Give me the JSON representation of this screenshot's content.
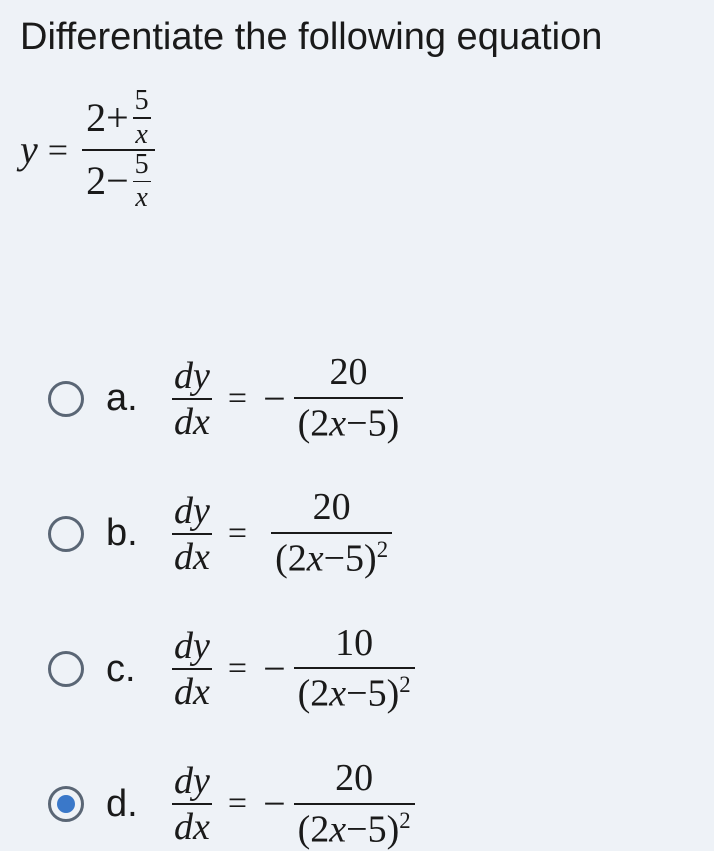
{
  "title": "Differentiate the following equation",
  "equation": {
    "lhs_var": "y",
    "eq_sign": "=",
    "num_const": "2",
    "num_op": "+",
    "den_const": "2",
    "den_op": "−",
    "small_num": "5",
    "small_den": "x"
  },
  "options": {
    "a": {
      "label": "a.",
      "dy": "dy",
      "dx": "dx",
      "eq": "=",
      "neg": "−",
      "num": "20",
      "den_open": "(2",
      "den_x": "x",
      "den_rest": "−5)",
      "den_sup": ""
    },
    "b": {
      "label": "b.",
      "dy": "dy",
      "dx": "dx",
      "eq": "=",
      "neg": "",
      "num": "20",
      "den_open": "(2",
      "den_x": "x",
      "den_rest": "−5)",
      "den_sup": "2"
    },
    "c": {
      "label": "c.",
      "dy": "dy",
      "dx": "dx",
      "eq": "=",
      "neg": "−",
      "num": "10",
      "den_open": "(2",
      "den_x": "x",
      "den_rest": "−5)",
      "den_sup": "2"
    },
    "d": {
      "label": "d.",
      "dy": "dy",
      "dx": "dx",
      "eq": "=",
      "neg": "−",
      "num": "20",
      "den_open": "(2",
      "den_x": "x",
      "den_rest": "−5)",
      "den_sup": "2"
    }
  },
  "selected": "d",
  "colors": {
    "background": "#eef2f7",
    "text": "#1a1a1a",
    "radio_border": "#5a6675",
    "radio_fill": "#3a78c9"
  }
}
